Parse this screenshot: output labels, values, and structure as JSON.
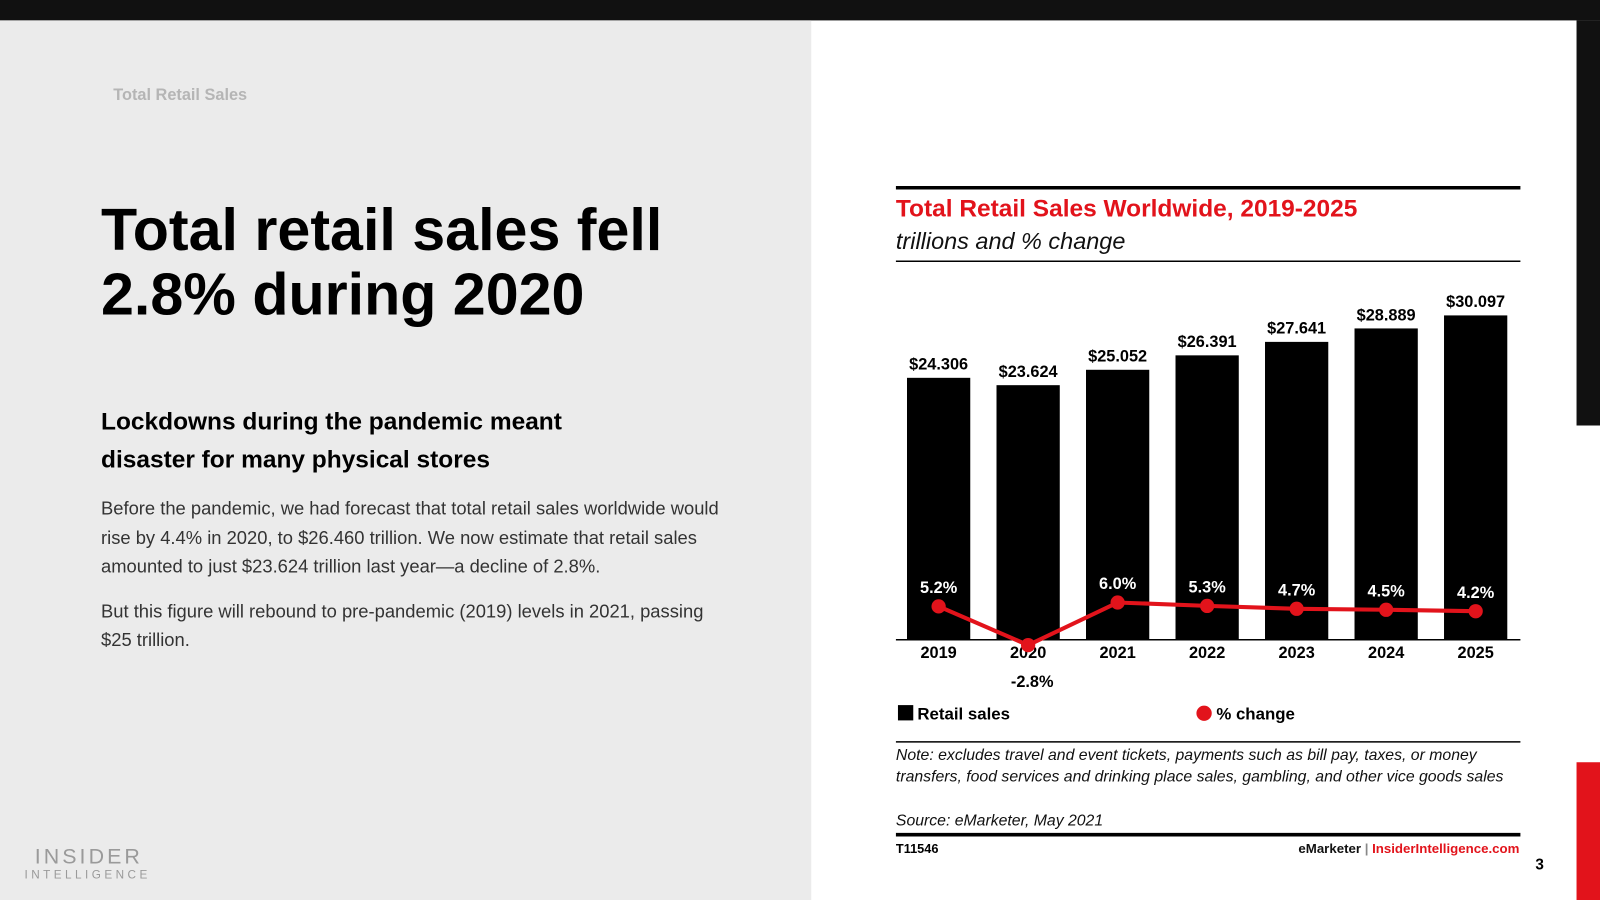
{
  "slide": {
    "section": "Total Retail Sales",
    "heading": [
      "Total retail sales fell",
      "2.8% during 2020"
    ],
    "subheading": [
      "Lockdowns during the pandemic meant",
      "disaster for many physical stores"
    ],
    "paragraphs": [
      "Before the pandemic, we had forecast that total retail sales worldwide would rise by 4.4% in 2020, to $26.460 trillion. We now estimate that retail sales amounted to just $23.624 trillion last year—a decline of 2.8%.",
      "But this figure will rebound to pre-pandemic (2019) levels in 2021, passing $25 trillion."
    ],
    "logo": [
      "INSIDER",
      "INTELLIGENCE"
    ],
    "page_number": "3"
  },
  "chart_data": {
    "type": "bar",
    "title": "Total Retail Sales Worldwide, 2019-2025",
    "subtitle": "trillions and % change",
    "categories": [
      "2019",
      "2020",
      "2021",
      "2022",
      "2023",
      "2024",
      "2025"
    ],
    "series": [
      {
        "name": "Retail sales",
        "color": "#000000",
        "values": [
          24.306,
          23.624,
          25.052,
          26.391,
          27.641,
          28.889,
          30.097
        ],
        "value_labels": [
          "$24.306",
          "$23.624",
          "$25.052",
          "$26.391",
          "$27.641",
          "$28.889",
          "$30.097"
        ]
      },
      {
        "name": "% change",
        "color": "#e2131b",
        "type": "line",
        "axis": "y2",
        "values": [
          5.2,
          -2.8,
          6.0,
          5.3,
          4.7,
          4.5,
          4.2
        ],
        "value_labels": [
          "5.2%",
          "-2.8%",
          "6.0%",
          "5.3%",
          "4.7%",
          "4.5%",
          "4.2%"
        ]
      }
    ],
    "ylim": [
      0,
      32
    ],
    "y2lim": [
      -1.7,
      69.5
    ],
    "note": "Note: excludes travel and event tickets, payments such as bill pay, taxes, or money transfers, food services and drinking place sales, gambling, and other vice goods sales",
    "source": "Source: eMarketer, May 2021",
    "chart_id": "T11546",
    "brand": "eMarketer",
    "separator": "|",
    "site": "InsiderIntelligence.com"
  }
}
